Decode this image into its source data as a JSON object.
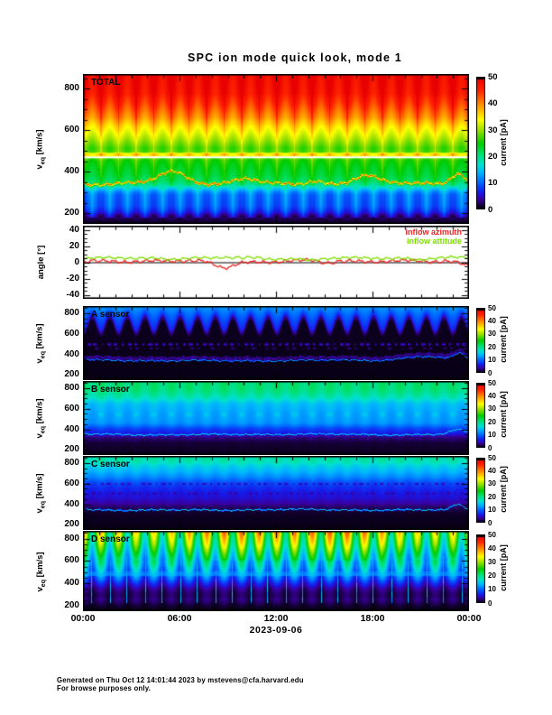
{
  "title": "SPC ion mode quick look, mode 1",
  "footer": {
    "line1": "Generated on Thu Oct 12 14:01:44 2023 by mstevens@cfa.harvard.edu",
    "line2": "For browse purposes only."
  },
  "x_axis": {
    "tick_labels": [
      "00:00",
      "06:00",
      "12:00",
      "18:00",
      "00:00"
    ],
    "date_label": "2023-09-06"
  },
  "velocity_axis": {
    "label_main": "v",
    "label_sub": "eq",
    "label_unit": " [km/s]",
    "ticks": [
      "200",
      "400",
      "600",
      "800"
    ],
    "range": [
      150,
      870
    ]
  },
  "angle_axis": {
    "label": "angle [°]",
    "ticks": [
      "40",
      "20",
      "0",
      "-20",
      "-40"
    ],
    "range": [
      -45,
      45
    ]
  },
  "legend": {
    "items": [
      {
        "label": "inflow azimuth",
        "color": "#ee2222"
      },
      {
        "label": "inflow attitude",
        "color": "#7de000"
      }
    ]
  },
  "colorbar": {
    "label": "current [pA]",
    "ticks": [
      "0",
      "10",
      "20",
      "30",
      "40",
      "50"
    ],
    "min": 0,
    "max": 50,
    "gradient_stops": [
      [
        0.0,
        "#000000"
      ],
      [
        0.035,
        "#16003a"
      ],
      [
        0.08,
        "#3a00a0"
      ],
      [
        0.13,
        "#1818e8"
      ],
      [
        0.2,
        "#0060ff"
      ],
      [
        0.28,
        "#00b4ff"
      ],
      [
        0.34,
        "#00e0d0"
      ],
      [
        0.42,
        "#00e070"
      ],
      [
        0.5,
        "#00cc00"
      ],
      [
        0.6,
        "#9ae000"
      ],
      [
        0.68,
        "#ffff00"
      ],
      [
        0.8,
        "#ff8800"
      ],
      [
        0.9,
        "#ff2200"
      ],
      [
        1.0,
        "#e80000"
      ]
    ]
  },
  "chart_data": {
    "type": "heatmap",
    "description": "Multi-panel time-velocity spectrogram quick look of SPC ion current plus inflow angle line plot",
    "x_range_hours": [
      0,
      24
    ],
    "date": "2023-09-06",
    "z_label": "current [pA]",
    "z_range": [
      0,
      50
    ],
    "panels": [
      {
        "id": "total",
        "label": "TOTAL",
        "type": "heatmap",
        "y_range": [
          150,
          870
        ],
        "profile": [
          [
            870,
            49
          ],
          [
            780,
            47.5
          ],
          [
            720,
            44
          ],
          [
            660,
            40
          ],
          [
            620,
            36
          ],
          [
            580,
            33
          ],
          [
            545,
            30
          ],
          [
            515,
            27.5
          ],
          [
            495,
            28
          ],
          [
            488,
            36
          ],
          [
            476,
            35
          ],
          [
            470,
            29
          ],
          [
            455,
            26
          ],
          [
            420,
            24.5
          ],
          [
            385,
            23.5
          ],
          [
            355,
            22
          ],
          [
            338,
            20
          ],
          [
            322,
            16
          ],
          [
            305,
            12.5
          ],
          [
            288,
            10.5
          ],
          [
            235,
            9.5
          ],
          [
            210,
            7.5
          ],
          [
            192,
            4.5
          ],
          [
            172,
            2
          ],
          [
            150,
            1.2
          ]
        ],
        "stripe": {
          "period": 19.5,
          "amp": 0.05,
          "edge_boost": 1.07
        },
        "blue_columns": {
          "vmin": 180,
          "vmax": 328,
          "gap_boost": 4.5,
          "col_drop": 2.2
        },
        "wiggle": {
          "base": 343,
          "noise_amp": 15,
          "value": 42,
          "half_width": 9,
          "seed": 1.7,
          "bumps": [
            [
              0.23,
              0.035,
              55
            ],
            [
              0.42,
              0.03,
              26
            ],
            [
              0.6,
              0.02,
              16
            ],
            [
              0.73,
              0.03,
              38
            ],
            [
              0.97,
              0.018,
              50
            ]
          ]
        },
        "white_line": 470
      },
      {
        "id": "angle",
        "label": "",
        "type": "line",
        "y_range": [
          -45,
          45
        ],
        "zero_line": 0,
        "series": [
          {
            "name": "inflow azimuth",
            "color": "#ee2222",
            "base": 1.2,
            "noise_amp": 4.2,
            "dip_amp": 8,
            "seed": 4.2,
            "jseed": 1.1
          },
          {
            "name": "inflow attitude",
            "color": "#7de000",
            "base": 5.2,
            "noise_amp": 3.2,
            "dip_amp": 4.5,
            "seed": 5.7,
            "jseed": 2.3
          }
        ]
      },
      {
        "id": "a",
        "label": "A sensor",
        "type": "heatmap",
        "y_range": [
          150,
          870
        ],
        "profile": [
          [
            870,
            0.9
          ],
          [
            520,
            0.9
          ],
          [
            150,
            0.6
          ]
        ],
        "arch": {
          "base": 700,
          "amp": 80,
          "period": 19.5,
          "top_val": 13,
          "edge_val": 6.5,
          "fade": 55
        },
        "dash_bands": [
          {
            "v": 500,
            "hw": 13,
            "val": 4,
            "thr": 0.2,
            "seed": 3.1
          },
          {
            "v": 458,
            "hw": 6,
            "val": 3,
            "thr": 0.7,
            "seed": 4.4
          }
        ],
        "wiggle": {
          "base": 340,
          "noise_amp": 17,
          "value": 14,
          "half_width": 6,
          "seed": 2.4,
          "bumps": [
            [
              0.88,
              0.05,
              40
            ],
            [
              0.975,
              0.015,
              65
            ]
          ]
        },
        "haze": {
          "above": 8,
          "height": 32,
          "val": 4.5
        }
      },
      {
        "id": "b",
        "label": "B sensor",
        "type": "heatmap",
        "y_range": [
          150,
          870
        ],
        "profile": [
          [
            870,
            21
          ],
          [
            780,
            20.5
          ],
          [
            720,
            18.5
          ],
          [
            672,
            16
          ],
          [
            640,
            14.5
          ],
          [
            560,
            13.4
          ],
          [
            500,
            13
          ],
          [
            460,
            12.4
          ],
          [
            430,
            10.5
          ],
          [
            408,
            8.6
          ],
          [
            385,
            7.6
          ],
          [
            362,
            6.6
          ],
          [
            345,
            5
          ],
          [
            330,
            3.6
          ],
          [
            310,
            2.6
          ],
          [
            275,
            1.8
          ],
          [
            240,
            1.4
          ],
          [
            200,
            1.2
          ],
          [
            165,
            0.9
          ]
        ],
        "stripe": {
          "period": 19.5,
          "amp": 0.05,
          "edge_boost": 1
        },
        "plus_marks": {
          "v": 545,
          "hw": 30,
          "boost": 1.7
        },
        "speckle": {
          "vmin": 282,
          "vmax": 348,
          "amp": 1.4
        },
        "wiggle": {
          "base": 350,
          "noise_amp": 15,
          "value": 17.5,
          "half_width": 7,
          "seed": 3.3,
          "bumps": [
            [
              0.97,
              0.02,
              45
            ]
          ]
        }
      },
      {
        "id": "c",
        "label": "C sensor",
        "type": "heatmap",
        "y_range": [
          150,
          870
        ],
        "profile": [
          [
            870,
            19
          ],
          [
            810,
            18
          ],
          [
            775,
            16
          ],
          [
            730,
            14.5
          ],
          [
            690,
            13
          ],
          [
            655,
            11.5
          ],
          [
            620,
            9.5
          ],
          [
            580,
            8
          ],
          [
            540,
            7
          ],
          [
            500,
            6.3
          ],
          [
            460,
            5.6
          ],
          [
            430,
            4.8
          ],
          [
            405,
            4
          ],
          [
            380,
            3
          ],
          [
            350,
            2.2
          ],
          [
            320,
            1.4
          ],
          [
            280,
            1
          ],
          [
            200,
            0.8
          ],
          [
            160,
            0.5
          ]
        ],
        "stripe": {
          "period": 19.5,
          "amp": 0.045,
          "edge_boost": 1
        },
        "dash_bands": [
          {
            "v": 600,
            "hw": 10,
            "val": 4.6,
            "thr": 0.25,
            "seed": 5.2
          },
          {
            "v": 505,
            "hw": 10,
            "val": 4.2,
            "thr": 0.3,
            "seed": 6.1
          }
        ],
        "wiggle": {
          "base": 345,
          "noise_amp": 16,
          "value": 16.5,
          "half_width": 7,
          "seed": 4.8,
          "bumps": [
            [
              0.97,
              0.015,
              55
            ]
          ]
        }
      },
      {
        "id": "d",
        "label": "D sensor",
        "type": "heatmap",
        "y_range": [
          150,
          870
        ],
        "profile": [
          [
            870,
            37
          ],
          [
            830,
            35
          ],
          [
            790,
            33
          ],
          [
            750,
            31
          ],
          [
            700,
            27.5
          ],
          [
            650,
            24
          ],
          [
            600,
            21
          ],
          [
            560,
            19
          ],
          [
            530,
            17
          ],
          [
            500,
            15.5
          ],
          [
            480,
            14
          ],
          [
            455,
            12.5
          ],
          [
            435,
            11
          ],
          [
            415,
            9
          ],
          [
            395,
            7.5
          ],
          [
            370,
            5.5
          ],
          [
            345,
            4
          ],
          [
            320,
            3.2
          ],
          [
            290,
            2.8
          ],
          [
            260,
            3.4
          ],
          [
            235,
            3
          ],
          [
            205,
            2
          ],
          [
            180,
            1.2
          ],
          [
            160,
            0.8
          ]
        ],
        "col_mod": {
          "period": 19.5,
          "base": 0.8,
          "amp": 0.28,
          "top_var": 0.14
        },
        "pierce": {
          "windows": [
            [
              0.44,
              0.48
            ],
            [
              0.52,
              0.56
            ]
          ],
          "vmin": 225,
          "vmax": 680,
          "val": 15
        },
        "band": {
          "v1": 462,
          "v2": 505,
          "val": 13,
          "amp": 2
        }
      }
    ]
  }
}
